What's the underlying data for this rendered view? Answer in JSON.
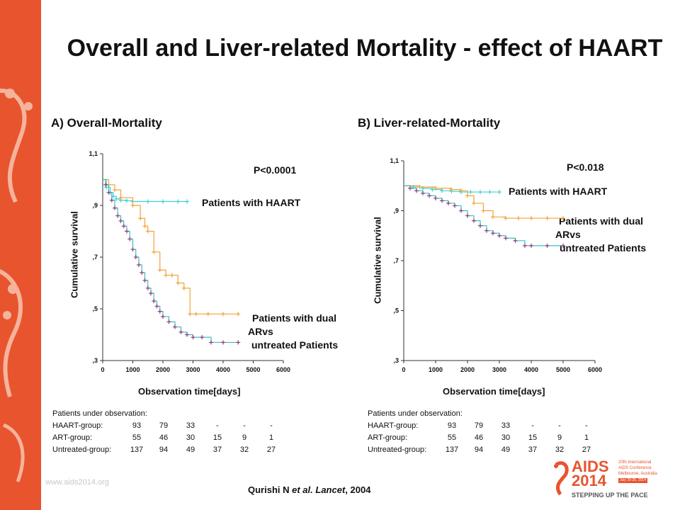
{
  "title": "Overall and Liver-related Mortality - effect of HAART",
  "website": "www.aids2014.org",
  "citation": {
    "authors": "Qurishi N",
    "etal": "et al.",
    "journal": "Lancet",
    "year": ", 2004"
  },
  "logo": {
    "brand": "AIDS",
    "year": "2014",
    "line1": "20th International",
    "line2": "AIDS Conference",
    "line3": "Melbourne, Australia",
    "line4": "July 20-25, 2014",
    "tagline": "STEPPING UP THE PACE"
  },
  "colors": {
    "sidebar": "#e8542e",
    "haart": "#3cd2d2",
    "dual": "#f2a33a",
    "untreated": "#8b3a7a",
    "teal_line": "#3cc0c0"
  },
  "obs_table": {
    "heading": "Patients under observation:",
    "rows": [
      {
        "label": "HAART-group:",
        "values": [
          "93",
          "79",
          "33",
          "-",
          "-",
          "-"
        ]
      },
      {
        "label": "ART-group:",
        "values": [
          "55",
          "46",
          "30",
          "15",
          "9",
          "1"
        ]
      },
      {
        "label": "Untreated-group:",
        "values": [
          "137",
          "94",
          "49",
          "37",
          "32",
          "27"
        ]
      }
    ]
  },
  "chart_data": [
    {
      "type": "line",
      "step": true,
      "title": "A) Overall-Mortality",
      "xlabel": "Observation time[days]",
      "ylabel": "Cumulative survival",
      "xlim": [
        0,
        6000
      ],
      "ylim": [
        0.3,
        1.1
      ],
      "xticks": [
        "0",
        "1000",
        "2000",
        "3000",
        "4000",
        "5000",
        "6000"
      ],
      "yticks": [
        {
          "v": 0.3,
          "label": ",3"
        },
        {
          "v": 0.5,
          "label": ",5"
        },
        {
          "v": 0.7,
          "label": ",7"
        },
        {
          "v": 0.9,
          "label": ",9"
        },
        {
          "v": 1.1,
          "label": "1,1"
        }
      ],
      "annotation": "P<0.0001",
      "series": [
        {
          "name": "Patients with HAART",
          "color": "#3cd2d2",
          "marker": "+",
          "x": [
            0,
            120,
            250,
            350,
            450,
            600,
            800,
            1000,
            1500,
            2000,
            2500,
            2800
          ],
          "y": [
            1.0,
            0.97,
            0.95,
            0.935,
            0.925,
            0.92,
            0.918,
            0.915,
            0.915,
            0.915,
            0.915,
            0.915
          ]
        },
        {
          "name": "Patients with dual ARvs",
          "color": "#f2a33a",
          "marker": "+",
          "x": [
            0,
            200,
            400,
            600,
            1000,
            1250,
            1400,
            1500,
            1700,
            1900,
            2100,
            2300,
            2500,
            2700,
            2900,
            3100,
            3500,
            4000,
            4500
          ],
          "y": [
            1.0,
            0.98,
            0.96,
            0.93,
            0.9,
            0.85,
            0.82,
            0.8,
            0.72,
            0.65,
            0.63,
            0.63,
            0.6,
            0.58,
            0.48,
            0.48,
            0.48,
            0.48,
            0.48
          ]
        },
        {
          "name": "untreated Patients",
          "color": "#8b3a7a",
          "marker": "+",
          "join_color": "#3cc0c0",
          "x": [
            0,
            100,
            200,
            300,
            400,
            500,
            600,
            700,
            800,
            900,
            1000,
            1100,
            1200,
            1300,
            1400,
            1500,
            1600,
            1700,
            1800,
            1900,
            2000,
            2200,
            2400,
            2600,
            2800,
            3000,
            3300,
            3600,
            4000,
            4500
          ],
          "y": [
            1.0,
            0.98,
            0.95,
            0.92,
            0.89,
            0.86,
            0.84,
            0.82,
            0.8,
            0.77,
            0.73,
            0.7,
            0.67,
            0.64,
            0.61,
            0.58,
            0.56,
            0.53,
            0.51,
            0.49,
            0.47,
            0.45,
            0.43,
            0.41,
            0.4,
            0.39,
            0.39,
            0.37,
            0.37,
            0.37
          ]
        }
      ],
      "labels": [
        {
          "lines": [
            "Patients with HAART"
          ]
        },
        {
          "lines": [
            "Patients with dual",
            "ARvs"
          ]
        },
        {
          "lines": [
            "untreated Patients"
          ]
        }
      ]
    },
    {
      "type": "line",
      "step": true,
      "title": "B) Liver-related-Mortality",
      "xlabel": "Observation time[days]",
      "ylabel": "Cumulative survival",
      "xlim": [
        0,
        6000
      ],
      "ylim": [
        0.3,
        1.1
      ],
      "xticks": [
        "0",
        "1000",
        "2000",
        "3000",
        "4000",
        "5000",
        "6000"
      ],
      "yticks": [
        {
          "v": 0.3,
          "label": ",3"
        },
        {
          "v": 0.5,
          "label": ",5"
        },
        {
          "v": 0.7,
          "label": ",7"
        },
        {
          "v": 0.9,
          "label": ",9"
        },
        {
          "v": 1.1,
          "label": "1,1"
        }
      ],
      "annotation": "P<0.018",
      "series": [
        {
          "name": "Patients with HAART",
          "color": "#3cd2d2",
          "marker": "+",
          "x": [
            0,
            300,
            600,
            900,
            1200,
            1500,
            1800,
            2100,
            2400,
            2700,
            3000
          ],
          "y": [
            1.0,
            0.995,
            0.99,
            0.985,
            0.98,
            0.978,
            0.975,
            0.975,
            0.975,
            0.975,
            0.975
          ]
        },
        {
          "name": "Patients with dual ARvs",
          "color": "#f2a33a",
          "marker": "+",
          "x": [
            0,
            500,
            1000,
            1500,
            1800,
            2000,
            2200,
            2500,
            2800,
            3200,
            3600,
            4000,
            4500,
            5000
          ],
          "y": [
            1.0,
            0.995,
            0.99,
            0.985,
            0.98,
            0.96,
            0.93,
            0.9,
            0.875,
            0.87,
            0.87,
            0.87,
            0.87,
            0.87
          ]
        },
        {
          "name": "untreated Patients",
          "color": "#8b3a7a",
          "marker": "+",
          "join_color": "#3cc0c0",
          "x": [
            0,
            200,
            400,
            600,
            800,
            1000,
            1200,
            1400,
            1600,
            1800,
            2000,
            2200,
            2400,
            2600,
            2800,
            3000,
            3200,
            3500,
            3800,
            4000,
            4500,
            5000
          ],
          "y": [
            1.0,
            0.99,
            0.98,
            0.97,
            0.96,
            0.95,
            0.94,
            0.93,
            0.92,
            0.9,
            0.88,
            0.86,
            0.84,
            0.82,
            0.81,
            0.8,
            0.79,
            0.78,
            0.76,
            0.76,
            0.76,
            0.76
          ]
        }
      ],
      "labels": [
        {
          "lines": [
            "Patients with HAART"
          ]
        },
        {
          "lines": [
            "Patients with dual",
            "ARvs"
          ]
        },
        {
          "lines": [
            "untreated Patients"
          ]
        }
      ]
    }
  ]
}
